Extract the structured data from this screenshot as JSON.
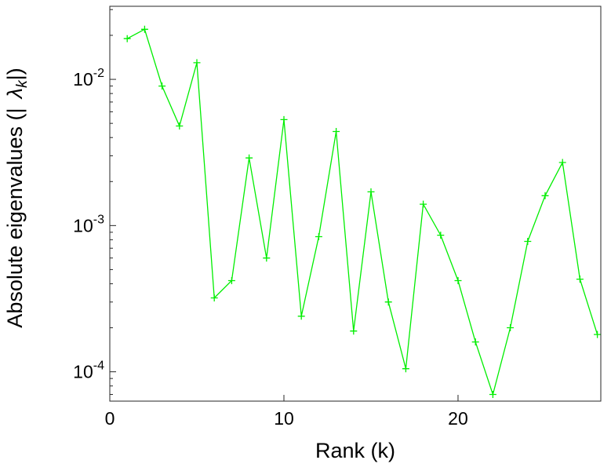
{
  "chart_data": {
    "type": "line",
    "title": "",
    "xlabel": "Rank (k)",
    "ylabel": "Absolute eigenvalues (| λ_k |)",
    "ylabel_parts": {
      "prefix": "Absolute eigenvalues (|",
      "symbol": "λ",
      "subscript": "k",
      "suffix": "|)"
    },
    "yscale": "log",
    "xlim": [
      0,
      28.2
    ],
    "ylim": [
      6.3e-05,
      0.0316
    ],
    "xticks": [
      0,
      10,
      20
    ],
    "ytick_exponents": [
      -2,
      -3,
      -4
    ],
    "grid": false,
    "legend": "none",
    "axis_color": "#262626",
    "text_color": "#000000",
    "series": [
      {
        "name": "absolute-eigenvalues",
        "color": "#00ee00",
        "marker": "plus",
        "x": [
          1,
          2,
          3,
          4,
          5,
          6,
          7,
          8,
          9,
          10,
          11,
          12,
          13,
          14,
          15,
          16,
          17,
          18,
          19,
          20,
          21,
          22,
          23,
          24,
          25,
          26,
          27,
          28
        ],
        "y": [
          0.019,
          0.022,
          0.009,
          0.0048,
          0.013,
          0.00032,
          0.00042,
          0.0029,
          0.0006,
          0.0053,
          0.00024,
          0.00084,
          0.0044,
          0.00019,
          0.0017,
          0.0003,
          0.000105,
          0.0014,
          0.00086,
          0.00042,
          0.00016,
          7e-05,
          0.0002,
          0.00078,
          0.0016,
          0.0027,
          0.00043,
          0.00018
        ]
      }
    ]
  }
}
